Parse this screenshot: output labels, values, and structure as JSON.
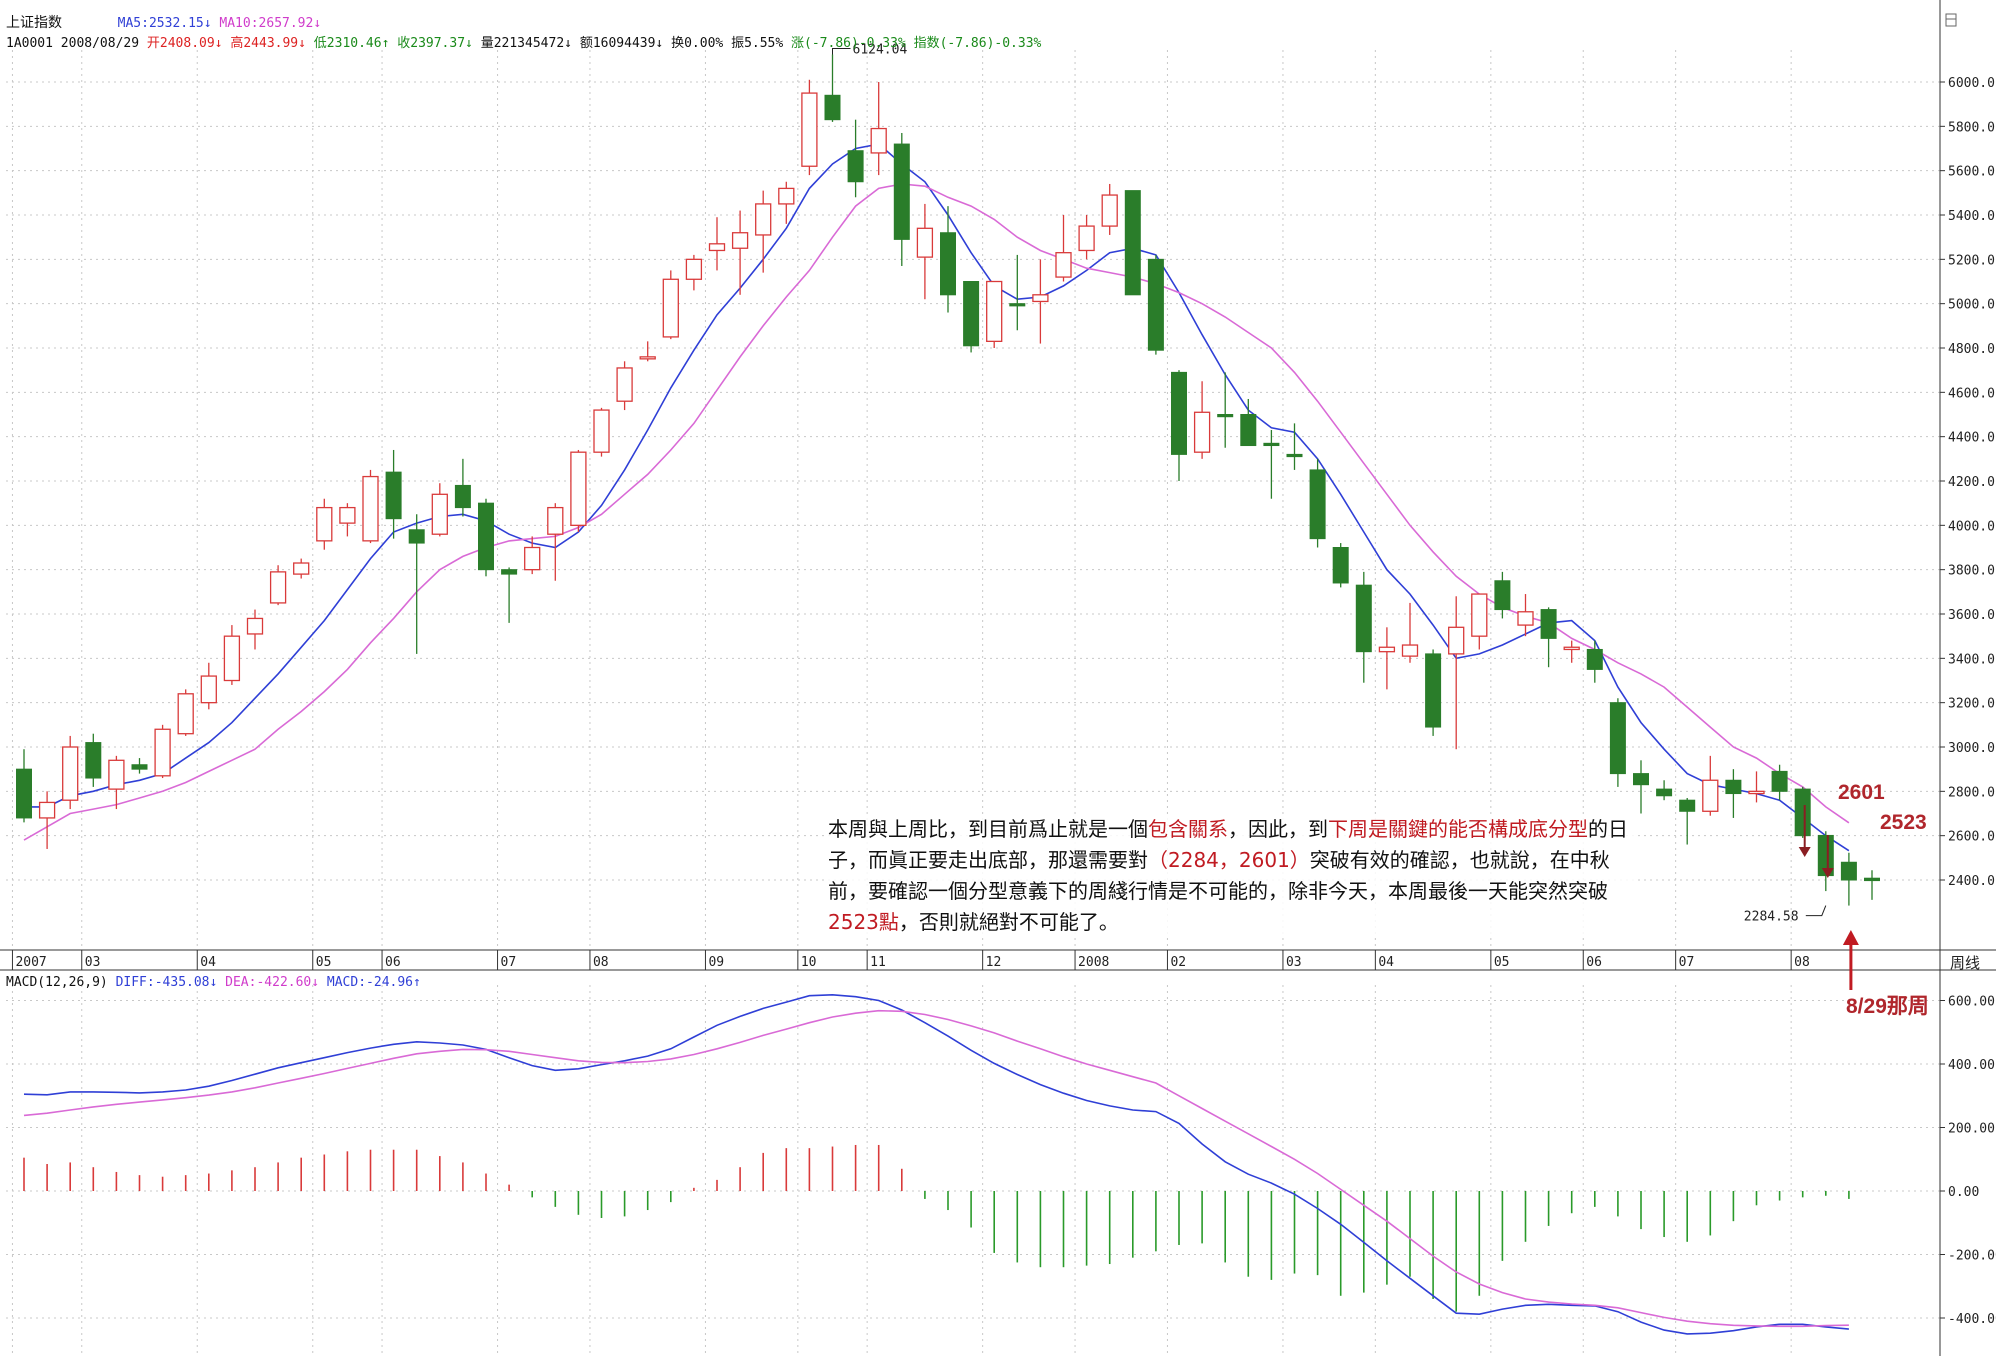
{
  "header": {
    "index_name": "上证指数",
    "ma5_text": "MA5:2532.15↓",
    "ma10_text": "MA10:2657.92↓",
    "code_date": "1A0001 2008/08/29",
    "open_text": "开2408.09↓",
    "high_text": "高2443.99↓",
    "low_text": "低2310.46↑",
    "close_text": "收2397.37↓",
    "volume_text": "量221345472↓",
    "amount_text": "额16094439↓",
    "turnover_text": "换0.00%",
    "amplitude_text": "振5.55%",
    "change_text": "涨(-7.86)-0.33%",
    "index_change_text": "指数(-7.86)-0.33%"
  },
  "macd_header": {
    "params": "MACD(12,26,9)",
    "diff": "DIFF:-435.08↓",
    "dea": "DEA:-422.60↓",
    "macd": "MACD:-24.96↑"
  },
  "colors": {
    "up": "#d93a3a",
    "down": "#2a7d2a",
    "ma5": "#2f3fd6",
    "ma10": "#d96ad6",
    "macd_pos": "#d93a3a",
    "macd_neg": "#2a9a2a",
    "grid": "#c8c8c8",
    "highlight": "#c01b22"
  },
  "annotations": {
    "peak_label": "6124.04",
    "trough_label": "2284.58",
    "callout_2601": "2601",
    "callout_2523": "2523",
    "callout_week": "8/29那周",
    "period_label": "周线"
  },
  "text_box": {
    "p1": "本周與上周比，到目前爲止就是一個",
    "p2": "包含關系",
    "p3": "，因此，到",
    "p4": "下周是關鍵的能否構成底分型",
    "p5": "的日子，而眞正要走出底部，那還需要對",
    "p6": "（2284，2601）",
    "p7": "突破有效的確認，也就說，在中秋前，要確認一個分型意義下的周綫行情是不可能的，除非今天，本周最後一天能突然突破",
    "p8": "2523點",
    "p9": "，否則就絕對不可能了。"
  },
  "chart_data": [
    {
      "type": "candlestick",
      "title": "上证指数 周线",
      "ylim": [
        2200,
        6250
      ],
      "yticks": [
        2400,
        2600,
        2800,
        3000,
        3200,
        3400,
        3600,
        3800,
        4000,
        4200,
        4400,
        4600,
        4800,
        5000,
        5200,
        5400,
        5600,
        5800,
        6000
      ],
      "ytick_labels": [
        "2400.0",
        "2600.0",
        "2800.0",
        "3000.0",
        "3200.0",
        "3400.0",
        "3600.0",
        "3800.0",
        "4000.0",
        "4200.0",
        "4400.0",
        "4600.0",
        "4800.0",
        "5000.0",
        "5200.0",
        "5400.0",
        "5600.0",
        "5800.0",
        "6000.0"
      ],
      "x_labels": [
        {
          "i": 0,
          "text": "2007"
        },
        {
          "i": 3,
          "text": "03"
        },
        {
          "i": 8,
          "text": "04"
        },
        {
          "i": 13,
          "text": "05"
        },
        {
          "i": 16,
          "text": "06"
        },
        {
          "i": 21,
          "text": "07"
        },
        {
          "i": 25,
          "text": "08"
        },
        {
          "i": 30,
          "text": "09"
        },
        {
          "i": 34,
          "text": "10"
        },
        {
          "i": 37,
          "text": "11"
        },
        {
          "i": 42,
          "text": "12"
        },
        {
          "i": 46,
          "text": "2008"
        },
        {
          "i": 50,
          "text": "02"
        },
        {
          "i": 55,
          "text": "03"
        },
        {
          "i": 59,
          "text": "04"
        },
        {
          "i": 64,
          "text": "05"
        },
        {
          "i": 68,
          "text": "06"
        },
        {
          "i": 72,
          "text": "07"
        },
        {
          "i": 77,
          "text": "08"
        }
      ],
      "candles": [
        [
          2900,
          2990,
          2660,
          2680
        ],
        [
          2680,
          2800,
          2540,
          2750
        ],
        [
          2760,
          3050,
          2720,
          3000
        ],
        [
          3020,
          3060,
          2820,
          2860
        ],
        [
          2810,
          2960,
          2720,
          2940
        ],
        [
          2920,
          2950,
          2880,
          2900
        ],
        [
          2870,
          3100,
          2860,
          3080
        ],
        [
          3060,
          3260,
          3050,
          3240
        ],
        [
          3200,
          3380,
          3170,
          3320
        ],
        [
          3300,
          3550,
          3280,
          3500
        ],
        [
          3510,
          3620,
          3440,
          3580
        ],
        [
          3650,
          3820,
          3640,
          3790
        ],
        [
          3780,
          3850,
          3760,
          3830
        ],
        [
          3930,
          4120,
          3890,
          4080
        ],
        [
          4010,
          4100,
          3950,
          4080
        ],
        [
          3930,
          4250,
          3920,
          4220
        ],
        [
          4240,
          4340,
          3940,
          4030
        ],
        [
          3980,
          4050,
          3420,
          3920
        ],
        [
          3960,
          4190,
          3950,
          4140
        ],
        [
          4180,
          4300,
          4040,
          4080
        ],
        [
          4100,
          4120,
          3770,
          3800
        ],
        [
          3800,
          3810,
          3560,
          3780
        ],
        [
          3800,
          3950,
          3780,
          3900
        ],
        [
          3960,
          4100,
          3750,
          4080
        ],
        [
          4000,
          4340,
          3970,
          4330
        ],
        [
          4330,
          4530,
          4310,
          4520
        ],
        [
          4560,
          4740,
          4520,
          4710
        ],
        [
          4760,
          4830,
          4740,
          4760
        ],
        [
          4850,
          5150,
          4840,
          5110
        ],
        [
          5110,
          5220,
          5060,
          5200
        ],
        [
          5240,
          5390,
          5150,
          5270
        ],
        [
          5250,
          5420,
          5040,
          5320
        ],
        [
          5310,
          5510,
          5140,
          5450
        ],
        [
          5450,
          5550,
          5360,
          5520
        ],
        [
          5620,
          6010,
          5580,
          5950
        ],
        [
          5940,
          6124,
          5820,
          5830
        ],
        [
          5690,
          5830,
          5480,
          5550
        ],
        [
          5680,
          6000,
          5580,
          5790
        ],
        [
          5720,
          5770,
          5170,
          5290
        ],
        [
          5210,
          5450,
          5020,
          5340
        ],
        [
          5320,
          5440,
          4960,
          5040
        ],
        [
          5100,
          5100,
          4780,
          4810
        ],
        [
          4830,
          5100,
          4800,
          5100
        ],
        [
          5000,
          5220,
          4880,
          4990
        ],
        [
          5010,
          5200,
          4820,
          5040
        ],
        [
          5120,
          5400,
          5100,
          5230
        ],
        [
          5240,
          5400,
          5200,
          5350
        ],
        [
          5350,
          5540,
          5310,
          5490
        ],
        [
          5510,
          5510,
          5050,
          5040
        ],
        [
          5200,
          5220,
          4770,
          4790
        ],
        [
          4690,
          4700,
          4200,
          4320
        ],
        [
          4330,
          4650,
          4300,
          4510
        ],
        [
          4500,
          4690,
          4350,
          4490
        ],
        [
          4500,
          4570,
          4360,
          4360
        ],
        [
          4370,
          4430,
          4120,
          4360
        ],
        [
          4320,
          4460,
          4250,
          4310
        ],
        [
          4250,
          4300,
          3900,
          3940
        ],
        [
          3900,
          3920,
          3720,
          3740
        ],
        [
          3730,
          3790,
          3290,
          3430
        ],
        [
          3430,
          3540,
          3260,
          3450
        ],
        [
          3410,
          3650,
          3380,
          3460
        ],
        [
          3420,
          3440,
          3050,
          3090
        ],
        [
          3420,
          3680,
          2990,
          3540
        ],
        [
          3500,
          3690,
          3440,
          3690
        ],
        [
          3750,
          3790,
          3580,
          3620
        ],
        [
          3550,
          3690,
          3500,
          3610
        ],
        [
          3620,
          3630,
          3360,
          3490
        ],
        [
          3440,
          3480,
          3380,
          3450
        ],
        [
          3440,
          3480,
          3290,
          3350
        ],
        [
          3200,
          3220,
          2820,
          2880
        ],
        [
          2880,
          2940,
          2700,
          2830
        ],
        [
          2810,
          2850,
          2760,
          2780
        ],
        [
          2760,
          2770,
          2560,
          2710
        ],
        [
          2710,
          2960,
          2690,
          2850
        ],
        [
          2850,
          2900,
          2680,
          2790
        ],
        [
          2790,
          2890,
          2750,
          2800
        ],
        [
          2890,
          2920,
          2760,
          2800
        ],
        [
          2810,
          2820,
          2590,
          2600
        ],
        [
          2601,
          2620,
          2350,
          2420
        ],
        [
          2480,
          2523,
          2284.58,
          2400
        ],
        [
          2408.09,
          2443.99,
          2310.46,
          2397.37
        ]
      ],
      "series": [
        {
          "name": "MA5",
          "values": [
            2730,
            2730,
            2780,
            2800,
            2830,
            2850,
            2880,
            2950,
            3020,
            3110,
            3220,
            3330,
            3450,
            3570,
            3710,
            3850,
            3970,
            4010,
            4040,
            4050,
            4020,
            3960,
            3920,
            3900,
            3970,
            4090,
            4250,
            4430,
            4620,
            4790,
            4950,
            5070,
            5200,
            5340,
            5520,
            5630,
            5700,
            5720,
            5630,
            5550,
            5400,
            5230,
            5080,
            5020,
            5030,
            5080,
            5150,
            5230,
            5250,
            5220,
            5050,
            4860,
            4680,
            4520,
            4440,
            4420,
            4300,
            4140,
            3970,
            3800,
            3690,
            3550,
            3400,
            3420,
            3460,
            3510,
            3560,
            3570,
            3480,
            3270,
            3110,
            2990,
            2880,
            2830,
            2810,
            2790,
            2760,
            2680,
            2600,
            2532.15
          ]
        },
        {
          "name": "MA10",
          "values": [
            2580,
            2640,
            2700,
            2720,
            2740,
            2770,
            2800,
            2840,
            2890,
            2940,
            2990,
            3080,
            3160,
            3250,
            3350,
            3470,
            3580,
            3700,
            3800,
            3860,
            3900,
            3930,
            3940,
            3950,
            3990,
            4050,
            4140,
            4230,
            4340,
            4460,
            4610,
            4760,
            4900,
            5030,
            5150,
            5300,
            5440,
            5520,
            5540,
            5530,
            5480,
            5440,
            5380,
            5300,
            5240,
            5200,
            5160,
            5140,
            5120,
            5090,
            5050,
            5000,
            4940,
            4870,
            4800,
            4690,
            4560,
            4420,
            4280,
            4140,
            4000,
            3880,
            3770,
            3690,
            3630,
            3590,
            3560,
            3490,
            3440,
            3380,
            3330,
            3270,
            3180,
            3090,
            3000,
            2950,
            2880,
            2820,
            2730,
            2657.92
          ]
        }
      ]
    },
    {
      "type": "macd",
      "title": "MACD(12,26,9)",
      "ylim": [
        -470,
        640
      ],
      "yticks": [
        -400,
        -200,
        0,
        200,
        400,
        600
      ],
      "ytick_labels": [
        "-400.00",
        "-200.00",
        "0.00",
        "200.00",
        "400.00",
        "600.00"
      ],
      "series": [
        {
          "name": "DIFF",
          "values": [
            305,
            303,
            312,
            312,
            311,
            309,
            312,
            318,
            330,
            348,
            368,
            388,
            404,
            420,
            436,
            450,
            462,
            470,
            466,
            460,
            446,
            420,
            395,
            380,
            385,
            398,
            410,
            425,
            448,
            485,
            522,
            550,
            575,
            595,
            615,
            618,
            612,
            600,
            570,
            530,
            488,
            443,
            402,
            367,
            335,
            308,
            285,
            268,
            255,
            250,
            213,
            148,
            92,
            53,
            25,
            -10,
            -55,
            -105,
            -162,
            -220,
            -275,
            -330,
            -385,
            -388,
            -372,
            -360,
            -357,
            -360,
            -362,
            -380,
            -413,
            -438,
            -450,
            -448,
            -440,
            -428,
            -420,
            -420,
            -428,
            -435.08
          ]
        },
        {
          "name": "DEA",
          "values": [
            238,
            245,
            255,
            265,
            273,
            280,
            287,
            294,
            302,
            312,
            325,
            340,
            355,
            370,
            386,
            402,
            418,
            432,
            440,
            446,
            445,
            440,
            430,
            420,
            410,
            405,
            404,
            408,
            416,
            430,
            448,
            468,
            490,
            510,
            530,
            548,
            560,
            568,
            566,
            556,
            540,
            520,
            498,
            472,
            448,
            423,
            400,
            380,
            360,
            340,
            300,
            260,
            220,
            180,
            140,
            100,
            55,
            5,
            -45,
            -95,
            -150,
            -205,
            -255,
            -293,
            -320,
            -340,
            -350,
            -356,
            -360,
            -368,
            -383,
            -398,
            -410,
            -418,
            -423,
            -425,
            -426,
            -426,
            -424,
            -422.6
          ]
        }
      ],
      "histogram": [
        105,
        85,
        90,
        75,
        60,
        50,
        45,
        50,
        55,
        65,
        75,
        90,
        105,
        115,
        125,
        130,
        130,
        130,
        110,
        90,
        55,
        20,
        -20,
        -50,
        -75,
        -85,
        -80,
        -60,
        -35,
        10,
        35,
        75,
        120,
        135,
        135,
        140,
        145,
        145,
        70,
        -25,
        -60,
        -115,
        -195,
        -225,
        -240,
        -240,
        -235,
        -230,
        -210,
        -190,
        -170,
        -165,
        -225,
        -270,
        -280,
        -260,
        -265,
        -330,
        -320,
        -295,
        -270,
        -340,
        -380,
        -330,
        -220,
        -160,
        -110,
        -70,
        -50,
        -80,
        -120,
        -145,
        -160,
        -140,
        -95,
        -45,
        -30,
        -20,
        -15,
        -24.96
      ]
    }
  ]
}
